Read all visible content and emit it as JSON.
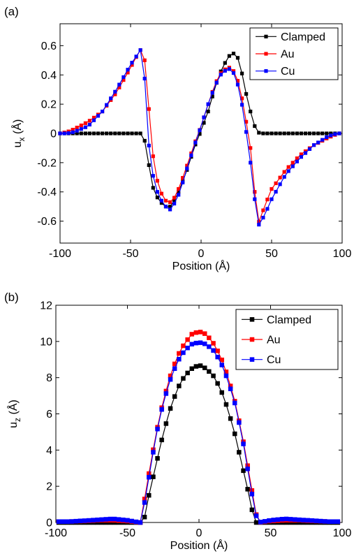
{
  "chart_data": [
    {
      "type": "line",
      "panel_label": "(a)",
      "xlabel": "Position (Å)",
      "ylabel_main": "u",
      "ylabel_sub": "x",
      "ylabel_unit": " (Å)",
      "xlim": [
        -100,
        100
      ],
      "ylim": [
        -0.75,
        0.75
      ],
      "xticks": [
        -100,
        -50,
        0,
        50,
        100
      ],
      "xtick_labels": [
        "-100",
        "-50",
        "0",
        "50",
        "100"
      ],
      "yticks": [
        -0.6,
        -0.4,
        -0.2,
        0,
        0.2,
        0.4,
        0.6
      ],
      "ytick_labels": [
        "-0.6",
        "-0.4",
        "-0.2",
        "0",
        "0.2",
        "0.4",
        "0.6"
      ],
      "grid": false,
      "legend_position": "top-right",
      "series": [
        {
          "name": "Clamped",
          "color": "#000000",
          "x": [
            -100,
            -42,
            -40,
            -38,
            -35,
            -30,
            -25,
            -22,
            -20,
            -15,
            -10,
            -5,
            0,
            5,
            10,
            15,
            20,
            22,
            25,
            28,
            30,
            35,
            38,
            40,
            42,
            100
          ],
          "y": [
            0,
            0,
            -0.05,
            -0.15,
            -0.35,
            -0.46,
            -0.5,
            -0.5,
            -0.48,
            -0.38,
            -0.25,
            -0.1,
            0.02,
            0.15,
            0.32,
            0.45,
            0.53,
            0.55,
            0.54,
            0.47,
            0.35,
            0.15,
            0.05,
            0.01,
            0,
            0
          ]
        },
        {
          "name": "Au",
          "color": "#ff0000",
          "x": [
            -100,
            -95,
            -90,
            -80,
            -70,
            -60,
            -50,
            -45,
            -41,
            -38,
            -35,
            -30,
            -25,
            -22,
            -20,
            -15,
            -10,
            -5,
            0,
            5,
            10,
            15,
            20,
            22,
            25,
            30,
            35,
            38,
            40,
            45,
            50,
            60,
            70,
            80,
            90,
            95,
            98
          ],
          "y": [
            0,
            0.01,
            0.03,
            0.08,
            0.15,
            0.28,
            0.45,
            0.54,
            0.6,
            0.3,
            -0.1,
            -0.38,
            -0.46,
            -0.47,
            -0.46,
            -0.36,
            -0.22,
            -0.08,
            0.05,
            0.2,
            0.34,
            0.43,
            0.45,
            0.44,
            0.4,
            0.2,
            -0.1,
            -0.4,
            -0.63,
            -0.5,
            -0.38,
            -0.25,
            -0.15,
            -0.08,
            -0.03,
            -0.01,
            0
          ]
        },
        {
          "name": "Cu",
          "color": "#0000ff",
          "x": [
            -100,
            -95,
            -90,
            -80,
            -70,
            -60,
            -50,
            -45,
            -41,
            -39,
            -36,
            -32,
            -28,
            -25,
            -22,
            -20,
            -15,
            -10,
            -5,
            0,
            5,
            10,
            15,
            20,
            22,
            25,
            30,
            35,
            38,
            40,
            45,
            50,
            60,
            70,
            80,
            90,
            95,
            98
          ],
          "y": [
            0,
            0,
            0.01,
            0.05,
            0.15,
            0.3,
            0.47,
            0.54,
            0.6,
            0.15,
            -0.2,
            -0.38,
            -0.46,
            -0.5,
            -0.52,
            -0.5,
            -0.4,
            -0.24,
            -0.09,
            0.05,
            0.2,
            0.33,
            0.42,
            0.44,
            0.43,
            0.38,
            0.15,
            -0.2,
            -0.45,
            -0.64,
            -0.56,
            -0.45,
            -0.28,
            -0.17,
            -0.08,
            -0.02,
            -0.005,
            0
          ]
        }
      ]
    },
    {
      "type": "line",
      "panel_label": "(b)",
      "xlabel": "Position (Å)",
      "ylabel_main": "u",
      "ylabel_sub": "z",
      "ylabel_unit": " (Å)",
      "xlim": [
        -100,
        100
      ],
      "ylim": [
        0,
        12
      ],
      "xticks": [
        -100,
        -50,
        0,
        50,
        100
      ],
      "xtick_labels": [
        "-100",
        "-50",
        "0",
        "50",
        "100"
      ],
      "yticks": [
        0,
        2,
        4,
        6,
        8,
        10,
        12
      ],
      "ytick_labels": [
        "0",
        "2",
        "4",
        "6",
        "8",
        "10",
        "12"
      ],
      "grid": false,
      "legend_position": "top-right",
      "series": [
        {
          "name": "Clamped",
          "color": "#000000",
          "x": [
            -98,
            -90,
            -80,
            -70,
            -60,
            -50,
            -45,
            -40,
            -38,
            -35,
            -30,
            -25,
            -20,
            -15,
            -10,
            -5,
            0,
            5,
            10,
            15,
            20,
            25,
            30,
            35,
            38,
            40,
            45,
            50,
            60,
            70,
            80,
            90,
            98
          ],
          "y": [
            0,
            0,
            0,
            0,
            0,
            0,
            0,
            0,
            0.3,
            1.5,
            3.2,
            4.9,
            6.3,
            7.4,
            8.1,
            8.5,
            8.7,
            8.5,
            8.1,
            7.4,
            6.3,
            4.9,
            3.2,
            1.5,
            0.3,
            0,
            0,
            0,
            0,
            0,
            0,
            0,
            0
          ]
        },
        {
          "name": "Au",
          "color": "#ff0000",
          "x": [
            -98,
            -90,
            -80,
            -70,
            -60,
            -50,
            -45,
            -41,
            -38,
            -35,
            -30,
            -25,
            -20,
            -15,
            -10,
            -5,
            0,
            5,
            10,
            15,
            20,
            25,
            30,
            35,
            38,
            41,
            45,
            50,
            60,
            70,
            80,
            90,
            98
          ],
          "y": [
            0.05,
            0.05,
            0.08,
            0.12,
            0.12,
            0.08,
            0.03,
            0,
            1.3,
            2.7,
            4.9,
            6.7,
            8.1,
            9.2,
            9.9,
            10.4,
            10.55,
            10.4,
            9.9,
            9.2,
            8.1,
            6.7,
            4.9,
            2.7,
            1.3,
            0,
            0.03,
            0.08,
            0.12,
            0.12,
            0.08,
            0.05,
            0.05
          ]
        },
        {
          "name": "Cu",
          "color": "#0000ff",
          "x": [
            -98,
            -90,
            -80,
            -70,
            -60,
            -50,
            -45,
            -41,
            -38,
            -35,
            -30,
            -25,
            -20,
            -15,
            -10,
            -5,
            0,
            5,
            10,
            15,
            20,
            25,
            30,
            35,
            38,
            41,
            45,
            50,
            60,
            70,
            80,
            90,
            98
          ],
          "y": [
            0.05,
            0.05,
            0.1,
            0.15,
            0.2,
            0.12,
            0.05,
            0,
            1.1,
            2.5,
            4.8,
            6.6,
            7.9,
            8.9,
            9.5,
            9.85,
            9.95,
            9.85,
            9.5,
            8.9,
            7.9,
            6.6,
            4.8,
            2.5,
            1.1,
            0,
            0.05,
            0.12,
            0.2,
            0.15,
            0.1,
            0.05,
            0.05
          ]
        }
      ]
    }
  ]
}
